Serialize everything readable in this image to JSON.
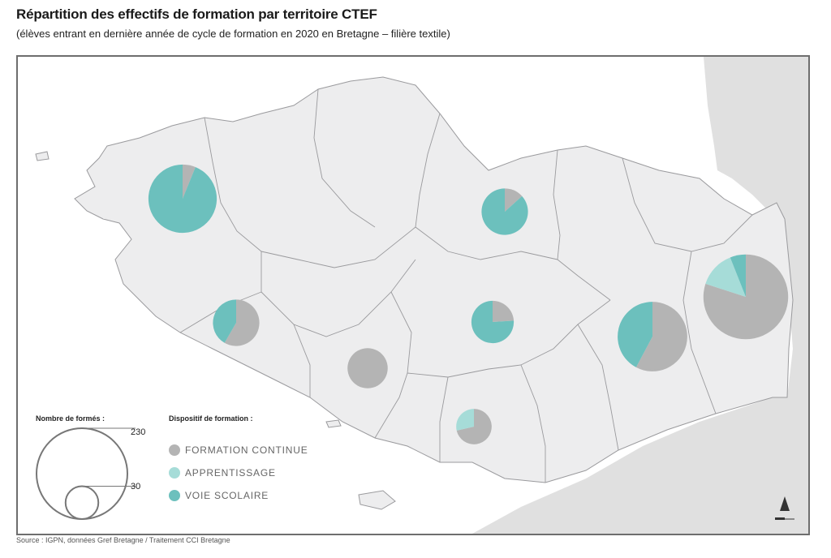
{
  "header": {
    "title": "Répartition des effectifs de formation par territoire CTEF",
    "subtitle": "(élèves entrant en dernière année de cycle de formation en 2020 en Bretagne – filière textile)"
  },
  "footer": {
    "source": "Source : IGPN, données Gref Bretagne / Traitement CCI Bretagne"
  },
  "legend": {
    "size_title": "Nombre de formés :",
    "size_max_label": "230",
    "size_min_label": "30",
    "size_max_value": 230,
    "size_min_value": 30,
    "type_title": "Dispositif de formation :",
    "categories": [
      {
        "key": "continue",
        "label": "FORMATION CONTINUE",
        "color": "#b4b4b4"
      },
      {
        "key": "apprentissage",
        "label": "APPRENTISSAGE",
        "color": "#a6dcd8"
      },
      {
        "key": "scolaire",
        "label": "VOIE SCOLAIRE",
        "color": "#6cc0bd"
      }
    ]
  },
  "colors": {
    "land": "#ededee",
    "land_border": "#9a9a9d",
    "neighbor_land": "#e0e0e0",
    "sea": "#ffffff"
  },
  "chart_data": {
    "type": "pie",
    "note_fields": [
      "continue",
      "apprentissage",
      "scolaire"
    ],
    "territories": [
      {
        "id": "brest",
        "total": 130,
        "continue": 8,
        "apprentissage": 0,
        "scolaire": 122
      },
      {
        "id": "saint-brieuc",
        "total": 60,
        "continue": 8,
        "apprentissage": 0,
        "scolaire": 52
      },
      {
        "id": "quimper",
        "total": 60,
        "continue": 35,
        "apprentissage": 0,
        "scolaire": 25
      },
      {
        "id": "pontivy",
        "total": 50,
        "continue": 12,
        "apprentissage": 0,
        "scolaire": 38
      },
      {
        "id": "rennes",
        "total": 135,
        "continue": 78,
        "apprentissage": 0,
        "scolaire": 57
      },
      {
        "id": "vitre",
        "total": 200,
        "continue": 160,
        "apprentissage": 28,
        "scolaire": 12
      },
      {
        "id": "lorient",
        "total": 45,
        "continue": 45,
        "apprentissage": 0,
        "scolaire": 0
      },
      {
        "id": "vannes",
        "total": 35,
        "continue": 25,
        "apprentissage": 10,
        "scolaire": 0
      }
    ]
  }
}
